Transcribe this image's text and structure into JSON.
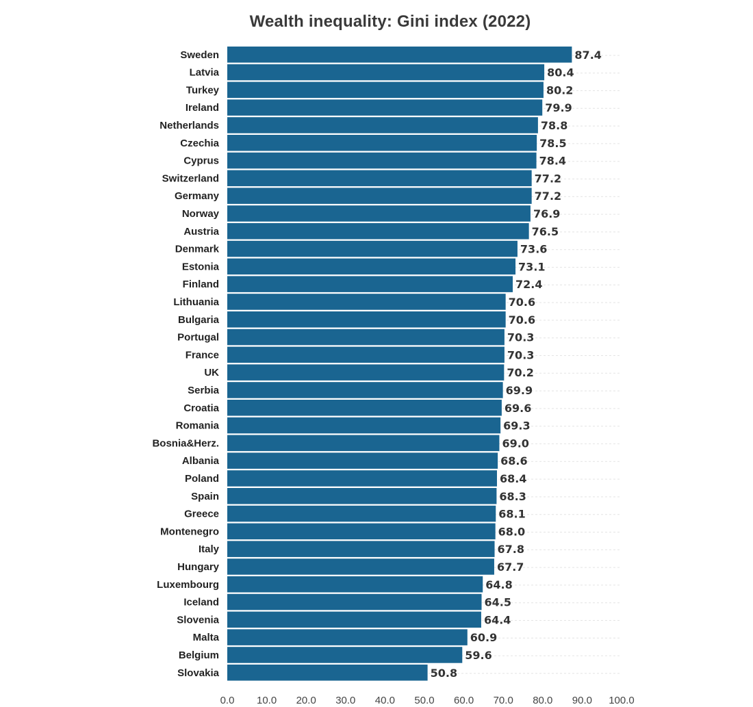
{
  "chart_data": {
    "type": "bar",
    "orientation": "horizontal",
    "title": "Wealth inequality: Gini index (2022)",
    "xlabel": "",
    "ylabel": "",
    "xlim": [
      0,
      100
    ],
    "ticks": [
      "0.0",
      "10.0",
      "20.0",
      "30.0",
      "40.0",
      "50.0",
      "60.0",
      "70.0",
      "80.0",
      "90.0",
      "100.0"
    ],
    "grid": "x dashed",
    "bar_color": "#1a6591",
    "categories": [
      "Sweden",
      "Latvia",
      "Turkey",
      "Ireland",
      "Netherlands",
      "Czechia",
      "Cyprus",
      "Switzerland",
      "Germany",
      "Norway",
      "Austria",
      "Denmark",
      "Estonia",
      "Finland",
      "Lithuania",
      "Bulgaria",
      "Portugal",
      "France",
      "UK",
      "Serbia",
      "Croatia",
      "Romania",
      "Bosnia&Herz.",
      "Albania",
      "Poland",
      "Spain",
      "Greece",
      "Montenegro",
      "Italy",
      "Hungary",
      "Luxembourg",
      "Iceland",
      "Slovenia",
      "Malta",
      "Belgium",
      "Slovakia"
    ],
    "values": [
      87.4,
      80.4,
      80.2,
      79.9,
      78.8,
      78.5,
      78.4,
      77.2,
      77.2,
      76.9,
      76.5,
      73.6,
      73.1,
      72.4,
      70.6,
      70.6,
      70.3,
      70.3,
      70.2,
      69.9,
      69.6,
      69.3,
      69.0,
      68.6,
      68.4,
      68.3,
      68.1,
      68.0,
      67.8,
      67.7,
      64.8,
      64.5,
      64.4,
      60.9,
      59.6,
      50.8
    ]
  }
}
